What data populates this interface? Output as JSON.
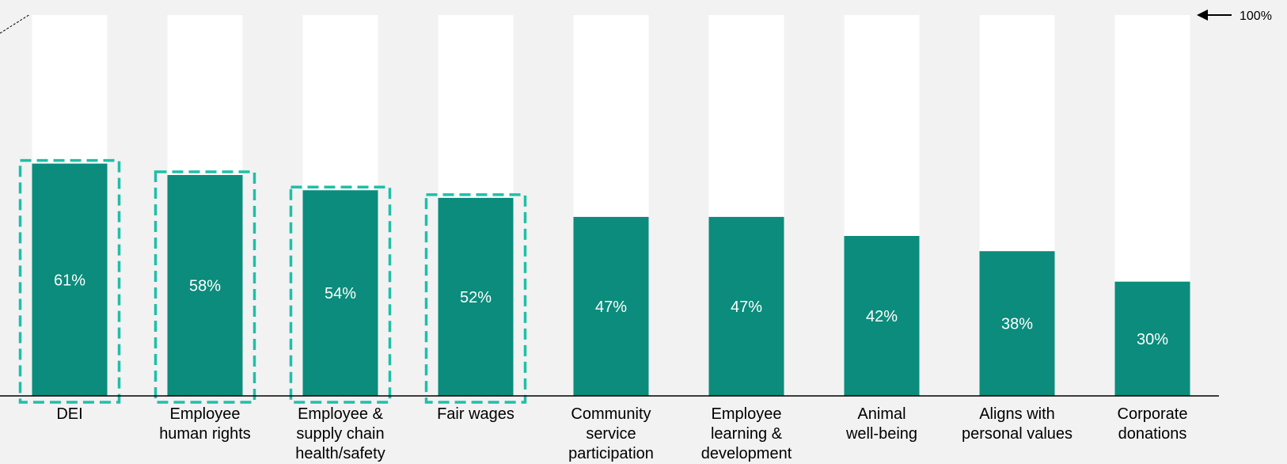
{
  "chart_data": {
    "type": "bar",
    "categories": [
      [
        "DEI"
      ],
      [
        "Employee",
        "human rights"
      ],
      [
        "Employee &",
        "supply chain",
        "health/safety"
      ],
      [
        "Fair wages"
      ],
      [
        "Community",
        "service",
        "participation"
      ],
      [
        "Employee",
        "learning &",
        "development"
      ],
      [
        "Animal",
        "well-being"
      ],
      [
        "Aligns with",
        "personal values"
      ],
      [
        "Corporate",
        "donations"
      ]
    ],
    "values": [
      61,
      58,
      54,
      52,
      47,
      47,
      42,
      38,
      30
    ],
    "value_labels": [
      "61%",
      "58%",
      "54%",
      "52%",
      "47%",
      "47%",
      "42%",
      "38%",
      "30%"
    ],
    "highlighted": [
      true,
      true,
      true,
      true,
      false,
      false,
      false,
      false,
      false
    ],
    "ylim": [
      0,
      100
    ],
    "reference_label": "100%",
    "title": "",
    "xlabel": "",
    "ylabel": "",
    "grid": false,
    "colors": {
      "bar": "#0b8c7c",
      "background_bar": "#ffffff",
      "highlight_border": "#1fbfa8",
      "page": "#f2f2f2"
    }
  }
}
